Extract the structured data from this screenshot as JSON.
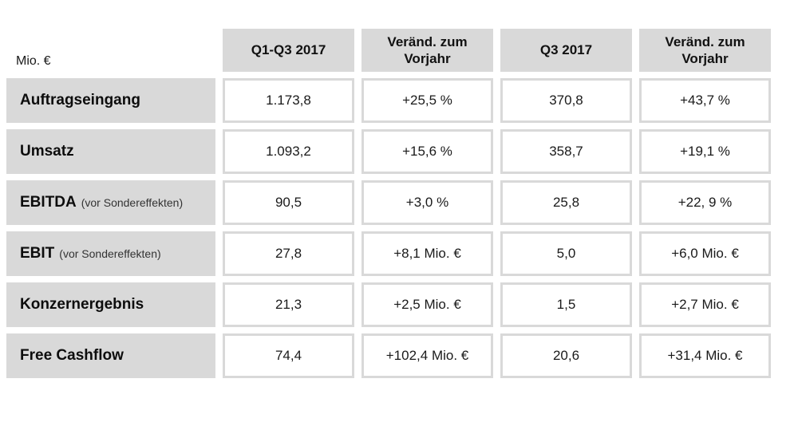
{
  "table": {
    "unit_label": "Mio. €",
    "columns": [
      "Q1-Q3 2017",
      "Veränd. zum Vorjahr",
      "Q3 2017",
      "Veränd. zum Vorjahr"
    ],
    "rows": [
      {
        "label": "Auftragseingang",
        "label_suffix": "",
        "values": [
          "1.173,8",
          "+25,5 %",
          "370,8",
          "+43,7 %"
        ]
      },
      {
        "label": "Umsatz",
        "label_suffix": "",
        "values": [
          "1.093,2",
          "+15,6 %",
          "358,7",
          "+19,1 %"
        ]
      },
      {
        "label": "EBITDA",
        "label_suffix": "(vor Sondereffekten)",
        "values": [
          "90,5",
          "+3,0 %",
          "25,8",
          "+22, 9 %"
        ]
      },
      {
        "label": "EBIT",
        "label_suffix": "(vor Sondereffekten)",
        "values": [
          "27,8",
          "+8,1 Mio. €",
          "5,0",
          "+6,0 Mio. €"
        ]
      },
      {
        "label": "Konzernergebnis",
        "label_suffix": "",
        "values": [
          "21,3",
          "+2,5 Mio. €",
          "1,5",
          "+2,7 Mio. €"
        ]
      },
      {
        "label": "Free Cashflow",
        "label_suffix": "",
        "values": [
          "74,4",
          "+102,4 Mio. €",
          "20,6",
          "+31,4 Mio. €"
        ]
      }
    ]
  },
  "colors": {
    "header_bg": "#d9d9d9",
    "label_bg": "#d9d9d9",
    "cell_border": "#d9d9d9",
    "text": "#111111"
  }
}
